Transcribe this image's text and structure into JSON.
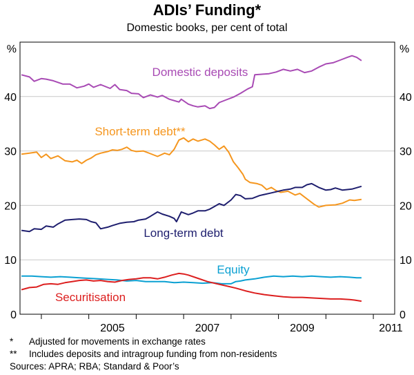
{
  "chart_data": {
    "type": "line",
    "title": "ADIs’ Funding*",
    "subtitle": "Domestic books, per cent of total",
    "ylabel_left": "%",
    "ylabel_right": "%",
    "ylim": [
      0,
      50
    ],
    "yticks": [
      0,
      10,
      20,
      30,
      40
    ],
    "xlim": [
      2003.55,
      2011.45
    ],
    "xticks": [
      2005,
      2007,
      2009,
      2011
    ],
    "xtick_labels": [
      "2005",
      "2007",
      "2009",
      "2011"
    ],
    "series": [
      {
        "name": "Domestic deposits",
        "label": "Domestic deposits",
        "color": "#a84ab4",
        "points": [
          [
            2003.58,
            44.0
          ],
          [
            2003.75,
            43.6
          ],
          [
            2003.85,
            42.8
          ],
          [
            2004.0,
            43.3
          ],
          [
            2004.1,
            43.2
          ],
          [
            2004.25,
            42.9
          ],
          [
            2004.45,
            42.3
          ],
          [
            2004.6,
            42.3
          ],
          [
            2004.75,
            41.6
          ],
          [
            2004.9,
            41.9
          ],
          [
            2005.0,
            42.3
          ],
          [
            2005.1,
            41.7
          ],
          [
            2005.25,
            42.2
          ],
          [
            2005.45,
            41.5
          ],
          [
            2005.55,
            42.2
          ],
          [
            2005.65,
            41.3
          ],
          [
            2005.8,
            41.1
          ],
          [
            2005.9,
            40.6
          ],
          [
            2006.05,
            40.5
          ],
          [
            2006.15,
            39.8
          ],
          [
            2006.3,
            40.3
          ],
          [
            2006.45,
            39.9
          ],
          [
            2006.55,
            40.2
          ],
          [
            2006.7,
            39.5
          ],
          [
            2006.9,
            39.0
          ],
          [
            2006.95,
            39.5
          ],
          [
            2007.1,
            38.6
          ],
          [
            2007.2,
            38.3
          ],
          [
            2007.3,
            38.1
          ],
          [
            2007.45,
            38.3
          ],
          [
            2007.55,
            37.8
          ],
          [
            2007.65,
            38.0
          ],
          [
            2007.75,
            38.9
          ],
          [
            2007.9,
            39.4
          ],
          [
            2008.05,
            39.9
          ],
          [
            2008.2,
            40.6
          ],
          [
            2008.35,
            41.4
          ],
          [
            2008.45,
            41.8
          ],
          [
            2008.5,
            44.0
          ],
          [
            2008.65,
            44.1
          ],
          [
            2008.8,
            44.2
          ],
          [
            2008.95,
            44.5
          ],
          [
            2009.1,
            45.0
          ],
          [
            2009.25,
            44.7
          ],
          [
            2009.4,
            45.0
          ],
          [
            2009.55,
            44.4
          ],
          [
            2009.7,
            44.7
          ],
          [
            2009.85,
            45.4
          ],
          [
            2010.0,
            46.0
          ],
          [
            2010.15,
            46.2
          ],
          [
            2010.3,
            46.7
          ],
          [
            2010.45,
            47.2
          ],
          [
            2010.55,
            47.5
          ],
          [
            2010.65,
            47.2
          ],
          [
            2010.75,
            46.6
          ]
        ]
      },
      {
        "name": "Short-term debt**",
        "label": "Short-term debt**",
        "color": "#f5961e",
        "points": [
          [
            2003.58,
            29.4
          ],
          [
            2003.75,
            29.6
          ],
          [
            2003.9,
            29.8
          ],
          [
            2004.0,
            28.8
          ],
          [
            2004.1,
            29.4
          ],
          [
            2004.2,
            28.6
          ],
          [
            2004.35,
            29.1
          ],
          [
            2004.5,
            28.2
          ],
          [
            2004.65,
            28.0
          ],
          [
            2004.75,
            28.3
          ],
          [
            2004.85,
            27.7
          ],
          [
            2004.95,
            28.3
          ],
          [
            2005.05,
            28.7
          ],
          [
            2005.15,
            29.3
          ],
          [
            2005.25,
            29.6
          ],
          [
            2005.4,
            29.9
          ],
          [
            2005.5,
            30.2
          ],
          [
            2005.6,
            30.1
          ],
          [
            2005.7,
            30.3
          ],
          [
            2005.8,
            30.7
          ],
          [
            2005.9,
            30.1
          ],
          [
            2006.0,
            29.9
          ],
          [
            2006.15,
            30.0
          ],
          [
            2006.3,
            29.5
          ],
          [
            2006.45,
            29.0
          ],
          [
            2006.6,
            29.6
          ],
          [
            2006.7,
            29.3
          ],
          [
            2006.8,
            30.3
          ],
          [
            2006.9,
            32.0
          ],
          [
            2007.0,
            32.4
          ],
          [
            2007.1,
            31.7
          ],
          [
            2007.2,
            32.2
          ],
          [
            2007.3,
            31.8
          ],
          [
            2007.45,
            32.2
          ],
          [
            2007.55,
            31.8
          ],
          [
            2007.65,
            31.1
          ],
          [
            2007.75,
            30.3
          ],
          [
            2007.85,
            30.9
          ],
          [
            2007.95,
            29.8
          ],
          [
            2008.05,
            28.0
          ],
          [
            2008.15,
            26.9
          ],
          [
            2008.25,
            25.7
          ],
          [
            2008.3,
            24.8
          ],
          [
            2008.4,
            24.2
          ],
          [
            2008.55,
            24.0
          ],
          [
            2008.65,
            23.7
          ],
          [
            2008.75,
            22.9
          ],
          [
            2008.85,
            23.3
          ],
          [
            2008.95,
            22.7
          ],
          [
            2009.05,
            22.4
          ],
          [
            2009.2,
            22.6
          ],
          [
            2009.35,
            21.9
          ],
          [
            2009.45,
            22.2
          ],
          [
            2009.6,
            21.2
          ],
          [
            2009.75,
            20.2
          ],
          [
            2009.85,
            19.7
          ],
          [
            2010.0,
            20.0
          ],
          [
            2010.2,
            20.1
          ],
          [
            2010.35,
            20.4
          ],
          [
            2010.5,
            21.0
          ],
          [
            2010.6,
            20.9
          ],
          [
            2010.75,
            21.1
          ]
        ]
      },
      {
        "name": "Long-term debt",
        "label": "Long-term debt",
        "color": "#1e1e6e",
        "points": [
          [
            2003.58,
            15.4
          ],
          [
            2003.75,
            15.2
          ],
          [
            2003.85,
            15.7
          ],
          [
            2004.0,
            15.6
          ],
          [
            2004.1,
            16.2
          ],
          [
            2004.25,
            16.0
          ],
          [
            2004.35,
            16.6
          ],
          [
            2004.5,
            17.3
          ],
          [
            2004.65,
            17.4
          ],
          [
            2004.8,
            17.5
          ],
          [
            2004.95,
            17.4
          ],
          [
            2005.05,
            17.0
          ],
          [
            2005.15,
            16.8
          ],
          [
            2005.25,
            15.7
          ],
          [
            2005.4,
            16.0
          ],
          [
            2005.5,
            16.3
          ],
          [
            2005.65,
            16.7
          ],
          [
            2005.8,
            16.9
          ],
          [
            2005.95,
            17.0
          ],
          [
            2006.05,
            17.3
          ],
          [
            2006.2,
            17.5
          ],
          [
            2006.3,
            18.0
          ],
          [
            2006.45,
            18.8
          ],
          [
            2006.55,
            18.4
          ],
          [
            2006.7,
            18.0
          ],
          [
            2006.8,
            17.6
          ],
          [
            2006.85,
            17.0
          ],
          [
            2006.95,
            18.8
          ],
          [
            2007.1,
            18.3
          ],
          [
            2007.2,
            18.6
          ],
          [
            2007.3,
            19.0
          ],
          [
            2007.45,
            19.0
          ],
          [
            2007.55,
            19.3
          ],
          [
            2007.65,
            19.8
          ],
          [
            2007.75,
            20.3
          ],
          [
            2007.85,
            20.0
          ],
          [
            2008.0,
            21.0
          ],
          [
            2008.1,
            22.0
          ],
          [
            2008.2,
            21.8
          ],
          [
            2008.3,
            21.2
          ],
          [
            2008.45,
            21.3
          ],
          [
            2008.6,
            21.8
          ],
          [
            2008.7,
            22.0
          ],
          [
            2008.85,
            22.3
          ],
          [
            2009.0,
            22.6
          ],
          [
            2009.1,
            22.8
          ],
          [
            2009.25,
            23.0
          ],
          [
            2009.35,
            23.3
          ],
          [
            2009.5,
            23.3
          ],
          [
            2009.6,
            23.8
          ],
          [
            2009.7,
            24.0
          ],
          [
            2009.85,
            23.3
          ],
          [
            2010.0,
            22.8
          ],
          [
            2010.1,
            22.9
          ],
          [
            2010.2,
            23.2
          ],
          [
            2010.35,
            22.8
          ],
          [
            2010.45,
            22.9
          ],
          [
            2010.55,
            23.0
          ],
          [
            2010.75,
            23.5
          ]
        ]
      },
      {
        "name": "Equity",
        "label": "Equity",
        "color": "#0aa0d2",
        "points": [
          [
            2003.58,
            7.0
          ],
          [
            2003.8,
            7.0
          ],
          [
            2004.0,
            6.9
          ],
          [
            2004.2,
            6.8
          ],
          [
            2004.4,
            6.9
          ],
          [
            2004.6,
            6.8
          ],
          [
            2004.8,
            6.7
          ],
          [
            2005.0,
            6.6
          ],
          [
            2005.2,
            6.5
          ],
          [
            2005.4,
            6.4
          ],
          [
            2005.6,
            6.3
          ],
          [
            2005.8,
            6.1
          ],
          [
            2006.0,
            6.2
          ],
          [
            2006.2,
            6.0
          ],
          [
            2006.4,
            6.0
          ],
          [
            2006.6,
            6.0
          ],
          [
            2006.8,
            5.8
          ],
          [
            2007.0,
            5.9
          ],
          [
            2007.2,
            5.8
          ],
          [
            2007.4,
            5.7
          ],
          [
            2007.6,
            5.8
          ],
          [
            2007.8,
            5.6
          ],
          [
            2008.0,
            5.6
          ],
          [
            2008.1,
            6.0
          ],
          [
            2008.2,
            6.1
          ],
          [
            2008.3,
            6.3
          ],
          [
            2008.5,
            6.5
          ],
          [
            2008.7,
            6.8
          ],
          [
            2008.9,
            7.0
          ],
          [
            2009.1,
            6.9
          ],
          [
            2009.3,
            7.0
          ],
          [
            2009.5,
            6.9
          ],
          [
            2009.7,
            7.0
          ],
          [
            2009.9,
            6.9
          ],
          [
            2010.1,
            6.8
          ],
          [
            2010.3,
            6.9
          ],
          [
            2010.5,
            6.8
          ],
          [
            2010.65,
            6.7
          ],
          [
            2010.75,
            6.7
          ]
        ]
      },
      {
        "name": "Securitisation",
        "label": "Securitisation",
        "color": "#dc1e1e",
        "points": [
          [
            2003.58,
            4.5
          ],
          [
            2003.75,
            4.9
          ],
          [
            2003.9,
            5.0
          ],
          [
            2004.05,
            5.5
          ],
          [
            2004.2,
            5.6
          ],
          [
            2004.35,
            5.5
          ],
          [
            2004.5,
            5.8
          ],
          [
            2004.65,
            6.0
          ],
          [
            2004.8,
            6.2
          ],
          [
            2004.95,
            6.3
          ],
          [
            2005.1,
            6.1
          ],
          [
            2005.25,
            6.2
          ],
          [
            2005.4,
            6.0
          ],
          [
            2005.55,
            5.9
          ],
          [
            2005.7,
            6.2
          ],
          [
            2005.85,
            6.4
          ],
          [
            2006.0,
            6.5
          ],
          [
            2006.15,
            6.7
          ],
          [
            2006.3,
            6.7
          ],
          [
            2006.45,
            6.5
          ],
          [
            2006.6,
            6.8
          ],
          [
            2006.75,
            7.2
          ],
          [
            2006.9,
            7.5
          ],
          [
            2007.0,
            7.4
          ],
          [
            2007.1,
            7.2
          ],
          [
            2007.3,
            6.6
          ],
          [
            2007.5,
            6.0
          ],
          [
            2007.7,
            5.6
          ],
          [
            2007.9,
            5.2
          ],
          [
            2008.1,
            4.8
          ],
          [
            2008.3,
            4.3
          ],
          [
            2008.5,
            3.9
          ],
          [
            2008.7,
            3.6
          ],
          [
            2008.9,
            3.4
          ],
          [
            2009.1,
            3.2
          ],
          [
            2009.3,
            3.1
          ],
          [
            2009.5,
            3.1
          ],
          [
            2009.7,
            3.0
          ],
          [
            2009.9,
            2.9
          ],
          [
            2010.1,
            2.8
          ],
          [
            2010.3,
            2.8
          ],
          [
            2010.5,
            2.7
          ],
          [
            2010.6,
            2.6
          ],
          [
            2010.75,
            2.4
          ]
        ]
      }
    ],
    "footnotes": [
      {
        "mark": "*",
        "text": "Adjusted for movements in exchange rates"
      },
      {
        "mark": "**",
        "text": "Includes deposits and intragroup funding from non-residents"
      }
    ],
    "source": "Sources: APRA; RBA; Standard & Poor’s"
  }
}
